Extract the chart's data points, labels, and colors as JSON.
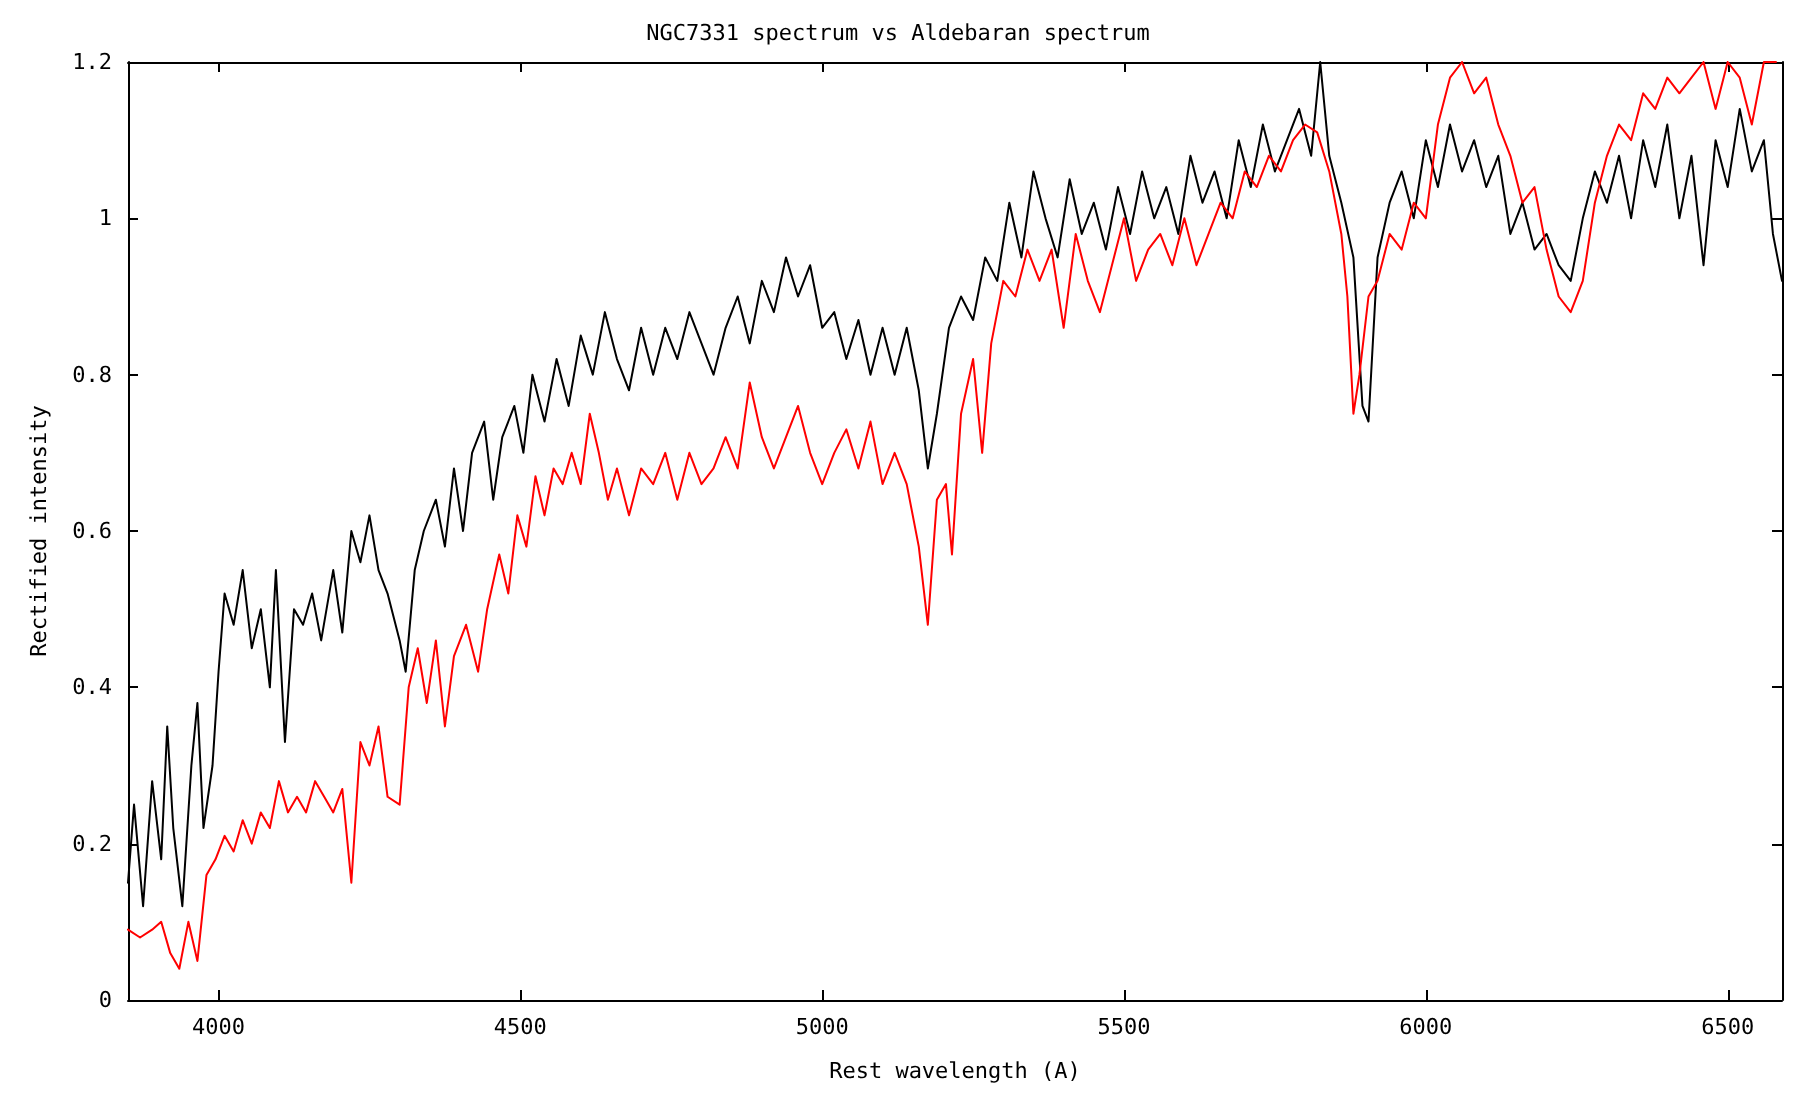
{
  "chart_data": {
    "type": "line",
    "title": "NGC7331 spectrum vs Aldebaran spectrum",
    "xlabel": "Rest wavelength (A)",
    "ylabel": "Rectified intensity",
    "xlim": [
      3850,
      6590
    ],
    "xticks": [
      4000,
      4500,
      5000,
      5500,
      6000,
      6500
    ],
    "ylim": [
      0,
      1.2
    ],
    "yticks": [
      0,
      0.2,
      0.4,
      0.6,
      0.8,
      1,
      1.2
    ],
    "grid": false,
    "marker": "none",
    "line_style": "solid",
    "series": [
      {
        "color": "#000000",
        "x": [
          3850,
          3860,
          3875,
          3890,
          3905,
          3915,
          3925,
          3940,
          3955,
          3965,
          3975,
          3990,
          4000,
          4010,
          4025,
          4040,
          4055,
          4070,
          4085,
          4095,
          4110,
          4125,
          4140,
          4155,
          4170,
          4190,
          4205,
          4220,
          4235,
          4250,
          4265,
          4280,
          4300,
          4310,
          4325,
          4340,
          4360,
          4375,
          4390,
          4405,
          4420,
          4440,
          4455,
          4470,
          4490,
          4505,
          4520,
          4540,
          4560,
          4580,
          4600,
          4620,
          4640,
          4660,
          4680,
          4700,
          4720,
          4740,
          4760,
          4780,
          4800,
          4820,
          4840,
          4860,
          4880,
          4900,
          4920,
          4940,
          4960,
          4980,
          5000,
          5020,
          5040,
          5060,
          5080,
          5100,
          5120,
          5140,
          5160,
          5175,
          5190,
          5210,
          5230,
          5250,
          5270,
          5290,
          5310,
          5330,
          5350,
          5370,
          5390,
          5410,
          5430,
          5450,
          5470,
          5490,
          5510,
          5530,
          5550,
          5570,
          5590,
          5610,
          5630,
          5650,
          5670,
          5690,
          5710,
          5730,
          5750,
          5770,
          5790,
          5810,
          5825,
          5840,
          5860,
          5880,
          5895,
          5905,
          5920,
          5940,
          5960,
          5980,
          6000,
          6020,
          6040,
          6060,
          6080,
          6100,
          6120,
          6140,
          6160,
          6180,
          6200,
          6220,
          6240,
          6260,
          6280,
          6300,
          6320,
          6340,
          6360,
          6380,
          6400,
          6420,
          6440,
          6460,
          6480,
          6500,
          6520,
          6540,
          6560,
          6575,
          6590
        ],
        "values": [
          0.15,
          0.25,
          0.12,
          0.28,
          0.18,
          0.35,
          0.22,
          0.12,
          0.3,
          0.38,
          0.22,
          0.3,
          0.42,
          0.52,
          0.48,
          0.55,
          0.45,
          0.5,
          0.4,
          0.55,
          0.33,
          0.5,
          0.48,
          0.52,
          0.46,
          0.55,
          0.47,
          0.6,
          0.56,
          0.62,
          0.55,
          0.52,
          0.46,
          0.42,
          0.55,
          0.6,
          0.64,
          0.58,
          0.68,
          0.6,
          0.7,
          0.74,
          0.64,
          0.72,
          0.76,
          0.7,
          0.8,
          0.74,
          0.82,
          0.76,
          0.85,
          0.8,
          0.88,
          0.82,
          0.78,
          0.86,
          0.8,
          0.86,
          0.82,
          0.88,
          0.84,
          0.8,
          0.86,
          0.9,
          0.84,
          0.92,
          0.88,
          0.95,
          0.9,
          0.94,
          0.86,
          0.88,
          0.82,
          0.87,
          0.8,
          0.86,
          0.8,
          0.86,
          0.78,
          0.68,
          0.75,
          0.86,
          0.9,
          0.87,
          0.95,
          0.92,
          1.02,
          0.95,
          1.06,
          1,
          0.95,
          1.05,
          0.98,
          1.02,
          0.96,
          1.04,
          0.98,
          1.06,
          1,
          1.04,
          0.98,
          1.08,
          1.02,
          1.06,
          1,
          1.1,
          1.04,
          1.12,
          1.06,
          1.1,
          1.14,
          1.08,
          1.2,
          1.08,
          1.02,
          0.95,
          0.76,
          0.74,
          0.95,
          1.02,
          1.06,
          1,
          1.1,
          1.04,
          1.12,
          1.06,
          1.1,
          1.04,
          1.08,
          0.98,
          1.02,
          0.96,
          0.98,
          0.94,
          0.92,
          1,
          1.06,
          1.02,
          1.08,
          1,
          1.1,
          1.04,
          1.12,
          1,
          1.08,
          0.94,
          1.1,
          1.04,
          1.14,
          1.06,
          1.1,
          0.98,
          0.92
        ]
      },
      {
        "color": "#ff0000",
        "x": [
          3850,
          3870,
          3890,
          3905,
          3920,
          3935,
          3950,
          3965,
          3980,
          3995,
          4010,
          4025,
          4040,
          4055,
          4070,
          4085,
          4100,
          4115,
          4130,
          4145,
          4160,
          4175,
          4190,
          4205,
          4220,
          4235,
          4250,
          4265,
          4280,
          4300,
          4315,
          4330,
          4345,
          4360,
          4375,
          4390,
          4410,
          4430,
          4445,
          4465,
          4480,
          4495,
          4510,
          4525,
          4540,
          4555,
          4570,
          4585,
          4600,
          4615,
          4630,
          4645,
          4660,
          4680,
          4700,
          4720,
          4740,
          4760,
          4780,
          4800,
          4820,
          4840,
          4860,
          4880,
          4900,
          4920,
          4940,
          4960,
          4980,
          5000,
          5020,
          5040,
          5060,
          5080,
          5100,
          5120,
          5140,
          5160,
          5175,
          5190,
          5205,
          5215,
          5230,
          5250,
          5265,
          5280,
          5300,
          5320,
          5340,
          5360,
          5380,
          5400,
          5420,
          5440,
          5460,
          5480,
          5500,
          5520,
          5540,
          5560,
          5580,
          5600,
          5620,
          5640,
          5660,
          5680,
          5700,
          5720,
          5740,
          5760,
          5780,
          5800,
          5820,
          5840,
          5860,
          5870,
          5880,
          5890,
          5905,
          5920,
          5940,
          5960,
          5980,
          6000,
          6020,
          6040,
          6060,
          6080,
          6100,
          6120,
          6140,
          6160,
          6180,
          6200,
          6220,
          6240,
          6260,
          6280,
          6300,
          6320,
          6340,
          6360,
          6380,
          6400,
          6420,
          6440,
          6460,
          6480,
          6500,
          6520,
          6540,
          6560,
          6580
        ],
        "values": [
          0.09,
          0.08,
          0.09,
          0.1,
          0.06,
          0.04,
          0.1,
          0.05,
          0.16,
          0.18,
          0.21,
          0.19,
          0.23,
          0.2,
          0.24,
          0.22,
          0.28,
          0.24,
          0.26,
          0.24,
          0.28,
          0.26,
          0.24,
          0.27,
          0.15,
          0.33,
          0.3,
          0.35,
          0.26,
          0.25,
          0.4,
          0.45,
          0.38,
          0.46,
          0.35,
          0.44,
          0.48,
          0.42,
          0.5,
          0.57,
          0.52,
          0.62,
          0.58,
          0.67,
          0.62,
          0.68,
          0.66,
          0.7,
          0.66,
          0.75,
          0.7,
          0.64,
          0.68,
          0.62,
          0.68,
          0.66,
          0.7,
          0.64,
          0.7,
          0.66,
          0.68,
          0.72,
          0.68,
          0.79,
          0.72,
          0.68,
          0.72,
          0.76,
          0.7,
          0.66,
          0.7,
          0.73,
          0.68,
          0.74,
          0.66,
          0.7,
          0.66,
          0.58,
          0.48,
          0.64,
          0.66,
          0.57,
          0.75,
          0.82,
          0.7,
          0.84,
          0.92,
          0.9,
          0.96,
          0.92,
          0.96,
          0.86,
          0.98,
          0.92,
          0.88,
          0.94,
          1,
          0.92,
          0.96,
          0.98,
          0.94,
          1,
          0.94,
          0.98,
          1.02,
          1,
          1.06,
          1.04,
          1.08,
          1.06,
          1.1,
          1.12,
          1.11,
          1.06,
          0.98,
          0.9,
          0.75,
          0.8,
          0.9,
          0.92,
          0.98,
          0.96,
          1.02,
          1,
          1.12,
          1.18,
          1.2,
          1.16,
          1.18,
          1.12,
          1.08,
          1.02,
          1.04,
          0.96,
          0.9,
          0.88,
          0.92,
          1.02,
          1.08,
          1.12,
          1.1,
          1.16,
          1.14,
          1.18,
          1.16,
          1.18,
          1.2,
          1.14,
          1.2,
          1.18,
          1.12,
          1.2,
          1.2
        ]
      }
    ]
  }
}
